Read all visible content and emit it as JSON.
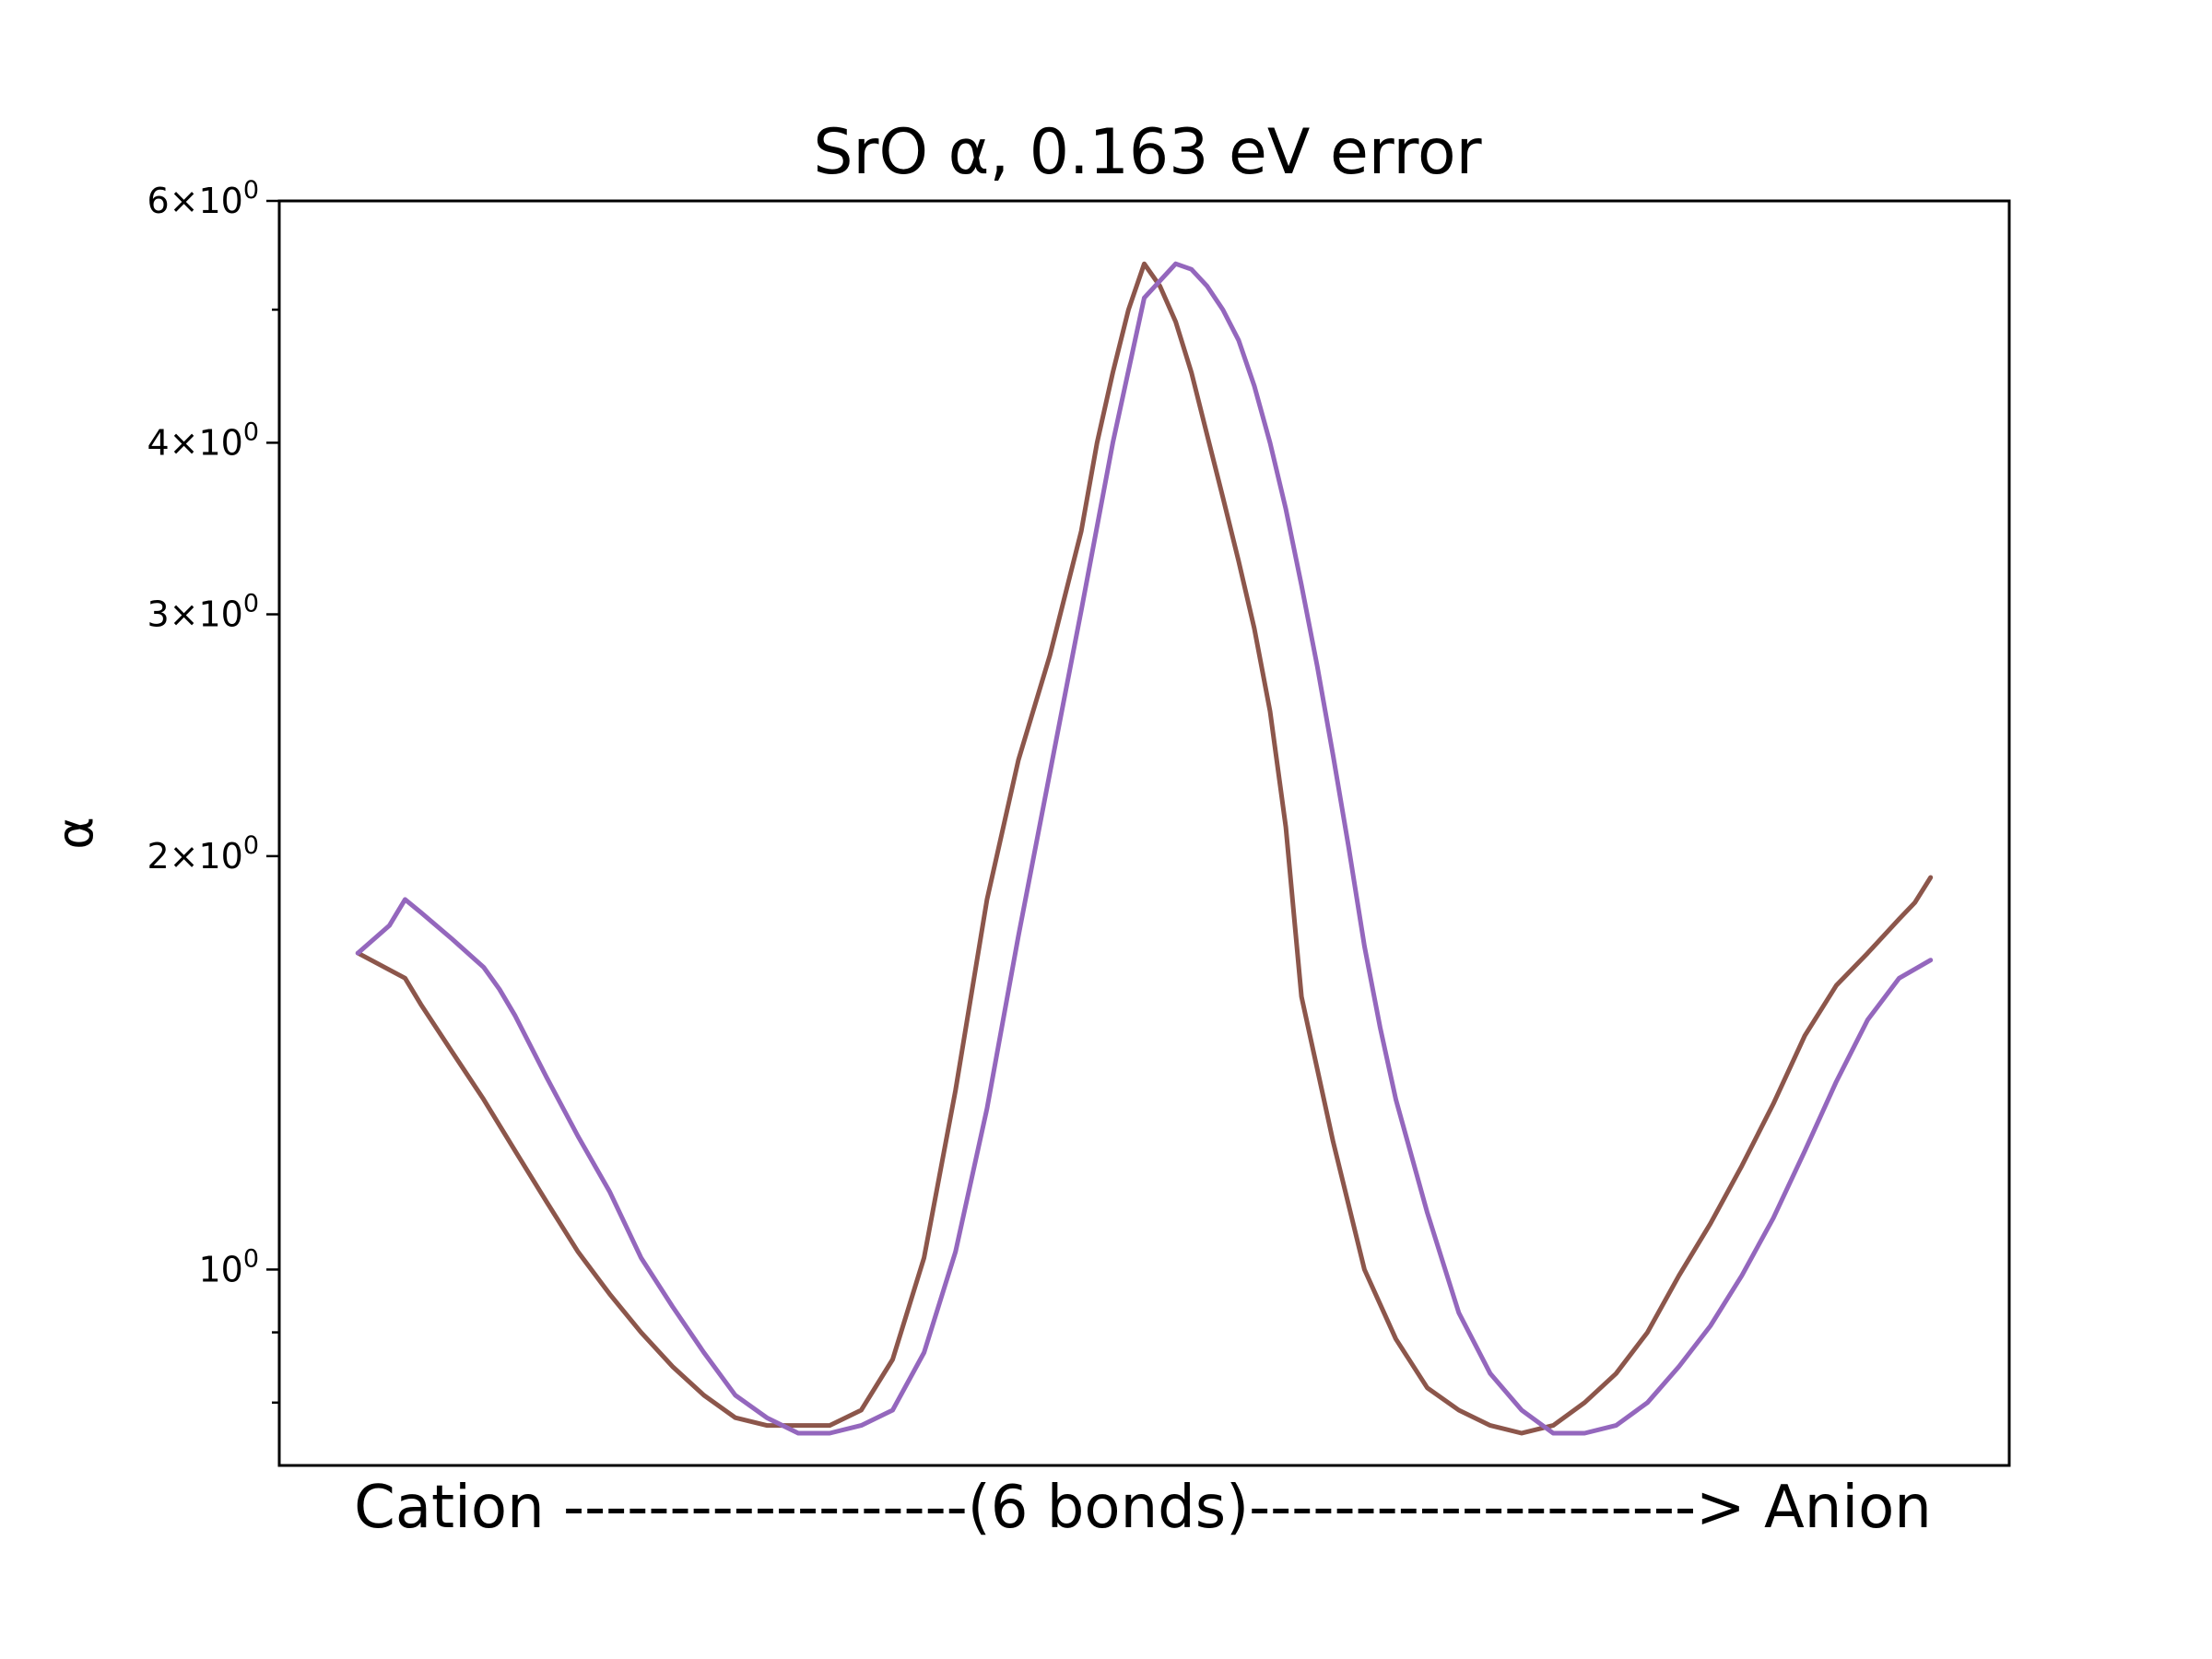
{
  "chart_data": {
    "type": "line",
    "title": "SrO α, 0.163 eV error",
    "xlabel": "Cation -------------------(6 bonds)---------------------> Anion",
    "ylabel": "α",
    "yscale": "log",
    "ylim": [
      0.72,
      6.0
    ],
    "xlim": [
      -5,
      105
    ],
    "grid": false,
    "legend": "none",
    "y_ticks": [
      {
        "value": 1,
        "mantissa": "",
        "base": "10",
        "exp": "0"
      },
      {
        "value": 2,
        "mantissa": "2",
        "base": "10",
        "exp": "0"
      },
      {
        "value": 3,
        "mantissa": "3",
        "base": "10",
        "exp": "0"
      },
      {
        "value": 4,
        "mantissa": "4",
        "base": "10",
        "exp": "0"
      },
      {
        "value": 6,
        "mantissa": "6",
        "base": "10",
        "exp": "0"
      }
    ],
    "y_minor_ticks": [
      0.8,
      0.9,
      5
    ],
    "series": [
      {
        "color": "#8c564b",
        "x": [
          0,
          3,
          4,
          6,
          8,
          10,
          12,
          14,
          16,
          18,
          20,
          22,
          24,
          26,
          28,
          30,
          32,
          34,
          36,
          38,
          40,
          42,
          44,
          46,
          47,
          48,
          49,
          50,
          51,
          52,
          53,
          54,
          55,
          56,
          57,
          58,
          59,
          60,
          62,
          64,
          66,
          68,
          70,
          72,
          74,
          76,
          78,
          80,
          82,
          84,
          86,
          88,
          90,
          92,
          94,
          96,
          98,
          99,
          100
        ],
        "y": [
          1.7,
          1.63,
          1.56,
          1.44,
          1.33,
          1.22,
          1.12,
          1.03,
          0.96,
          0.9,
          0.85,
          0.81,
          0.78,
          0.77,
          0.77,
          0.77,
          0.79,
          0.86,
          1.02,
          1.35,
          1.86,
          2.35,
          2.8,
          3.45,
          4.0,
          4.5,
          5.0,
          5.4,
          5.2,
          4.9,
          4.5,
          4.05,
          3.65,
          3.28,
          2.93,
          2.55,
          2.1,
          1.58,
          1.24,
          1.0,
          0.89,
          0.82,
          0.79,
          0.77,
          0.76,
          0.77,
          0.8,
          0.84,
          0.9,
          0.99,
          1.08,
          1.19,
          1.32,
          1.48,
          1.61,
          1.7,
          1.8,
          1.85,
          1.93
        ]
      },
      {
        "color": "#9467bd",
        "x": [
          0,
          2,
          3,
          4,
          6,
          8,
          9,
          10,
          12,
          14,
          16,
          18,
          20,
          22,
          24,
          26,
          28,
          30,
          32,
          34,
          36,
          38,
          40,
          42,
          44,
          46,
          48,
          50,
          52,
          53,
          54,
          55,
          56,
          57,
          58,
          59,
          60,
          61,
          62,
          63,
          64,
          65,
          66,
          68,
          70,
          72,
          74,
          76,
          78,
          80,
          82,
          84,
          86,
          88,
          90,
          92,
          94,
          96,
          98,
          100
        ],
        "y": [
          1.7,
          1.78,
          1.86,
          1.82,
          1.74,
          1.66,
          1.6,
          1.53,
          1.38,
          1.25,
          1.14,
          1.02,
          0.94,
          0.87,
          0.81,
          0.78,
          0.76,
          0.76,
          0.77,
          0.79,
          0.87,
          1.03,
          1.31,
          1.75,
          2.3,
          3.02,
          4.0,
          5.1,
          5.4,
          5.35,
          5.2,
          5.0,
          4.75,
          4.4,
          4.0,
          3.58,
          3.15,
          2.75,
          2.37,
          2.03,
          1.72,
          1.5,
          1.33,
          1.1,
          0.93,
          0.84,
          0.79,
          0.76,
          0.76,
          0.77,
          0.8,
          0.85,
          0.91,
          0.99,
          1.09,
          1.22,
          1.37,
          1.52,
          1.63,
          1.68
        ]
      }
    ]
  }
}
